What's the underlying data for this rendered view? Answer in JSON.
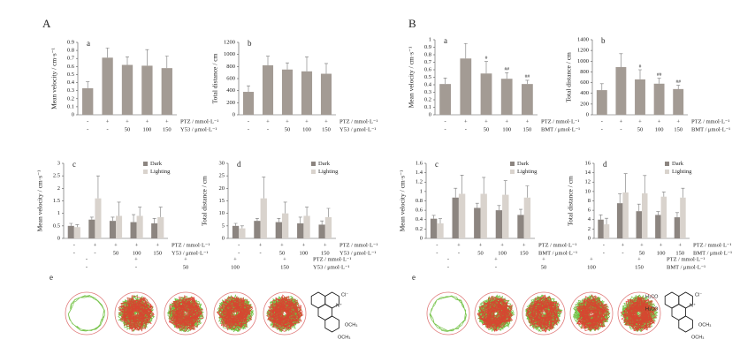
{
  "figure_labels": [
    "A",
    "B"
  ],
  "chart_data": [
    {
      "type": "bar",
      "panel": "a",
      "ylabel": "Mean velocity / cm·s⁻¹",
      "ylim": [
        0,
        0.9
      ],
      "yticks": [
        0,
        0.1,
        0.2,
        0.3,
        0.4,
        0.5,
        0.6,
        0.7,
        0.8,
        0.9
      ],
      "color": "#a39b94",
      "values": [
        0.33,
        0.71,
        0.62,
        0.61,
        0.58
      ],
      "errors": [
        0.08,
        0.12,
        0.1,
        0.2,
        0.15
      ],
      "conditions": [
        {
          "label": "PTZ / mmol·L⁻¹",
          "values": [
            "-",
            "+",
            "+",
            "+",
            "+"
          ]
        },
        {
          "label": "Y53 / μmol·L⁻¹",
          "values": [
            "-",
            "-",
            "50",
            "100",
            "150"
          ]
        }
      ]
    },
    {
      "type": "bar",
      "panel": "b",
      "ylabel": "Total distance / cm",
      "ylim": [
        0,
        1200
      ],
      "yticks": [
        0,
        200,
        400,
        600,
        800,
        1000,
        1200
      ],
      "color": "#a39b94",
      "values": [
        380,
        820,
        750,
        720,
        680
      ],
      "errors": [
        100,
        150,
        110,
        240,
        170
      ],
      "conditions": [
        {
          "label": "PTZ / mmol·L⁻¹",
          "values": [
            "-",
            "+",
            "+",
            "+",
            "+"
          ]
        },
        {
          "label": "Y53 / μmol·L⁻¹",
          "values": [
            "-",
            "-",
            "50",
            "100",
            "150"
          ]
        }
      ]
    },
    {
      "type": "bar",
      "panel": "a",
      "ylabel": "Mean velocity / cm·s⁻¹",
      "ylim": [
        0,
        1
      ],
      "yticks": [
        0,
        0.1,
        0.2,
        0.3,
        0.4,
        0.5,
        0.6,
        0.7,
        0.8,
        0.9,
        1
      ],
      "color": "#a39b94",
      "values": [
        0.41,
        0.75,
        0.55,
        0.48,
        0.41
      ],
      "errors": [
        0.08,
        0.2,
        0.16,
        0.08,
        0.05
      ],
      "annotations": [
        null,
        null,
        "#",
        "##",
        "##"
      ],
      "conditions": [
        {
          "label": "PTZ / mmol·L⁻¹",
          "values": [
            "-",
            "+",
            "+",
            "+",
            "+"
          ]
        },
        {
          "label": "BMT / μmol·L⁻¹",
          "values": [
            "-",
            "-",
            "50",
            "100",
            "150"
          ]
        }
      ]
    },
    {
      "type": "bar",
      "panel": "b",
      "ylabel": "Total distance / cm",
      "ylim": [
        0,
        1400
      ],
      "yticks": [
        0,
        200,
        400,
        600,
        800,
        1000,
        1200,
        1400
      ],
      "color": "#a39b94",
      "values": [
        460,
        890,
        660,
        580,
        480
      ],
      "errors": [
        120,
        250,
        180,
        100,
        70
      ],
      "annotations": [
        null,
        null,
        "#",
        "##",
        "##"
      ],
      "conditions": [
        {
          "label": "PTZ / mmol·L⁻¹",
          "values": [
            "-",
            "+",
            "+",
            "+",
            "+"
          ]
        },
        {
          "label": "BMT / μmol·L⁻¹",
          "values": [
            "-",
            "-",
            "50",
            "100",
            "150"
          ]
        }
      ]
    },
    {
      "type": "bar",
      "panel": "c",
      "ylabel": "Mean velocity / cm·s⁻¹",
      "ylim": [
        0,
        3
      ],
      "yticks": [
        0,
        0.5,
        1,
        1.5,
        2,
        2.5,
        3
      ],
      "series": [
        {
          "name": "Dark",
          "color": "#8c8580",
          "values": [
            0.5,
            0.75,
            0.7,
            0.65,
            0.6
          ],
          "errors": [
            0.1,
            0.1,
            0.15,
            0.3,
            0.2
          ]
        },
        {
          "name": "Lighting",
          "color": "#d9d3cd",
          "values": [
            0.45,
            1.6,
            0.9,
            0.9,
            0.85
          ],
          "errors": [
            0.1,
            0.9,
            0.55,
            0.35,
            0.4
          ]
        }
      ],
      "conditions": [
        {
          "label": "PTZ / mmol·L⁻¹",
          "values": [
            "-",
            "+",
            "+",
            "+",
            "+"
          ]
        },
        {
          "label": "Y53 / μmol·L⁻¹",
          "values": [
            "-",
            "-",
            "50",
            "100",
            "150"
          ]
        }
      ]
    },
    {
      "type": "bar",
      "panel": "d",
      "ylabel": "Total distance / cm",
      "ylim": [
        0,
        30
      ],
      "yticks": [
        0,
        5,
        10,
        15,
        20,
        25,
        30
      ],
      "series": [
        {
          "name": "Dark",
          "color": "#8c8580",
          "values": [
            5,
            7,
            6.5,
            6,
            5.5
          ],
          "errors": [
            1,
            1,
            1.5,
            2.5,
            1.5
          ]
        },
        {
          "name": "Lighting",
          "color": "#d9d3cd",
          "values": [
            4,
            16,
            10,
            9,
            8.5
          ],
          "errors": [
            1,
            8.5,
            4.5,
            3.5,
            3.5
          ]
        }
      ],
      "conditions": [
        {
          "label": "PTZ / mmol·L⁻¹",
          "values": [
            "-",
            "+",
            "+",
            "+",
            "+"
          ]
        },
        {
          "label": "Y53 / μmol·L⁻¹",
          "values": [
            "-",
            "-",
            "50",
            "100",
            "150"
          ]
        }
      ]
    },
    {
      "type": "bar",
      "panel": "c",
      "ylabel": "Mean velocity / cm·s⁻¹",
      "ylim": [
        0,
        1.6
      ],
      "yticks": [
        0,
        0.2,
        0.4,
        0.6,
        0.8,
        1,
        1.2,
        1.4,
        1.6
      ],
      "series": [
        {
          "name": "Dark",
          "color": "#8c8580",
          "values": [
            0.42,
            0.87,
            0.65,
            0.6,
            0.5
          ],
          "errors": [
            0.07,
            0.2,
            0.1,
            0.1,
            0.12
          ]
        },
        {
          "name": "Lighting",
          "color": "#d9d3cd",
          "values": [
            0.32,
            0.95,
            0.95,
            0.93,
            0.87
          ],
          "errors": [
            0.1,
            0.4,
            0.35,
            0.3,
            0.25
          ]
        }
      ],
      "conditions": [
        {
          "label": "PTZ / mmol·L⁻¹",
          "values": [
            "-",
            "+",
            "+",
            "+",
            "+"
          ]
        },
        {
          "label": "BMT / μmol·L⁻¹",
          "values": [
            "-",
            "-",
            "50",
            "100",
            "150"
          ]
        }
      ]
    },
    {
      "type": "bar",
      "panel": "d",
      "ylabel": "Total distance / cm",
      "ylim": [
        0,
        16
      ],
      "yticks": [
        0,
        2,
        4,
        6,
        8,
        10,
        12,
        14,
        16
      ],
      "series": [
        {
          "name": "Dark",
          "color": "#8c8580",
          "values": [
            4,
            7.5,
            5.8,
            5,
            4.5
          ],
          "errors": [
            1,
            2,
            1.5,
            0.7,
            1
          ]
        },
        {
          "name": "Lighting",
          "color": "#d9d3cd",
          "values": [
            3,
            9.8,
            9.6,
            8.9,
            8.7
          ],
          "errors": [
            1.3,
            4,
            3.8,
            1,
            2
          ]
        }
      ],
      "conditions": [
        {
          "label": "PTZ / mmol·L⁻¹",
          "values": [
            "-",
            "+",
            "+",
            "+",
            "+"
          ]
        },
        {
          "label": "BMT / μmol·L⁻¹",
          "values": [
            "-",
            "-",
            "50",
            "100",
            "150"
          ]
        }
      ]
    }
  ],
  "panel_e": [
    {
      "label": "e",
      "conditions": [
        {
          "label": "PTZ / mmol·L⁻¹",
          "values": [
            "-",
            "+",
            "+",
            "+",
            "+"
          ]
        },
        {
          "label": "Y53 / μmol·L⁻¹",
          "values": [
            "-",
            "-",
            "50",
            "100",
            "150"
          ]
        }
      ],
      "structure_labels": [
        "Cl⁻",
        "N⁺",
        "OCH₃",
        "OCH₃"
      ]
    },
    {
      "label": "e",
      "conditions": [
        {
          "label": "PTZ / mmol·L⁻¹",
          "values": [
            "-",
            "+",
            "+",
            "+",
            "+"
          ]
        },
        {
          "label": "BMT / μmol·L⁻¹",
          "values": [
            "-",
            "-",
            "50",
            "100",
            "150"
          ]
        }
      ],
      "structure_labels": [
        "H₃CO",
        "H₃CO",
        "Cl⁻",
        "N⁺",
        "OCH₃",
        "OCH₃"
      ]
    }
  ]
}
